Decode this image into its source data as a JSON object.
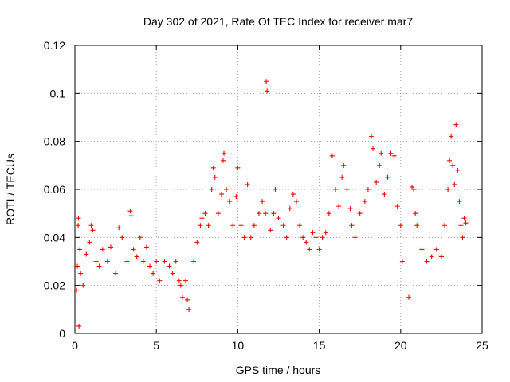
{
  "chart_data": {
    "type": "scatter",
    "title": "Day 302 of 2021, Rate Of TEC Index for receiver mar7",
    "xlabel": "GPS time / hours",
    "ylabel": "ROTI / TECUs",
    "xlim": [
      0,
      25
    ],
    "ylim": [
      0,
      0.12
    ],
    "x_ticks": [
      "0",
      "5",
      "10",
      "15",
      "20",
      "25"
    ],
    "y_ticks": [
      "0",
      "0.02",
      "0.04",
      "0.06",
      "0.08",
      "0.1",
      "0.12"
    ],
    "grid": true,
    "marker": "+",
    "color": "#ff0000",
    "series": [
      {
        "points": [
          [
            0.1,
            0.018
          ],
          [
            0.15,
            0.028
          ],
          [
            0.2,
            0.045
          ],
          [
            0.22,
            0.048
          ],
          [
            0.25,
            0.003
          ],
          [
            0.3,
            0.035
          ],
          [
            0.35,
            0.025
          ],
          [
            0.5,
            0.02
          ],
          [
            0.7,
            0.033
          ],
          [
            0.9,
            0.038
          ],
          [
            1.0,
            0.045
          ],
          [
            1.1,
            0.043
          ],
          [
            1.3,
            0.03
          ],
          [
            1.5,
            0.028
          ],
          [
            1.7,
            0.035
          ],
          [
            2.0,
            0.03
          ],
          [
            2.2,
            0.036
          ],
          [
            2.5,
            0.025
          ],
          [
            2.7,
            0.044
          ],
          [
            2.9,
            0.04
          ],
          [
            3.2,
            0.03
          ],
          [
            3.4,
            0.051
          ],
          [
            3.45,
            0.049
          ],
          [
            3.6,
            0.035
          ],
          [
            3.8,
            0.032
          ],
          [
            4.0,
            0.04
          ],
          [
            4.2,
            0.03
          ],
          [
            4.4,
            0.036
          ],
          [
            4.6,
            0.028
          ],
          [
            4.8,
            0.025
          ],
          [
            5.0,
            0.03
          ],
          [
            5.2,
            0.022
          ],
          [
            5.5,
            0.03
          ],
          [
            5.8,
            0.028
          ],
          [
            6.0,
            0.025
          ],
          [
            6.2,
            0.03
          ],
          [
            6.4,
            0.022
          ],
          [
            6.5,
            0.02
          ],
          [
            6.6,
            0.015
          ],
          [
            6.8,
            0.022
          ],
          [
            6.9,
            0.014
          ],
          [
            7.0,
            0.01
          ],
          [
            7.3,
            0.03
          ],
          [
            7.5,
            0.038
          ],
          [
            7.7,
            0.045
          ],
          [
            7.8,
            0.048
          ],
          [
            8.0,
            0.05
          ],
          [
            8.2,
            0.045
          ],
          [
            8.4,
            0.06
          ],
          [
            8.5,
            0.069
          ],
          [
            8.6,
            0.065
          ],
          [
            8.8,
            0.05
          ],
          [
            9.0,
            0.058
          ],
          [
            9.1,
            0.072
          ],
          [
            9.15,
            0.075
          ],
          [
            9.3,
            0.06
          ],
          [
            9.5,
            0.055
          ],
          [
            9.7,
            0.045
          ],
          [
            9.9,
            0.057
          ],
          [
            10.0,
            0.069
          ],
          [
            10.2,
            0.045
          ],
          [
            10.4,
            0.04
          ],
          [
            10.6,
            0.062
          ],
          [
            10.8,
            0.04
          ],
          [
            11.0,
            0.045
          ],
          [
            11.3,
            0.05
          ],
          [
            11.5,
            0.055
          ],
          [
            11.7,
            0.05
          ],
          [
            11.75,
            0.105
          ],
          [
            11.8,
            0.101
          ],
          [
            12.0,
            0.043
          ],
          [
            12.2,
            0.05
          ],
          [
            12.3,
            0.06
          ],
          [
            12.5,
            0.048
          ],
          [
            12.8,
            0.045
          ],
          [
            13.0,
            0.04
          ],
          [
            13.2,
            0.052
          ],
          [
            13.4,
            0.058
          ],
          [
            13.6,
            0.055
          ],
          [
            13.8,
            0.045
          ],
          [
            14.0,
            0.04
          ],
          [
            14.2,
            0.038
          ],
          [
            14.4,
            0.035
          ],
          [
            14.6,
            0.042
          ],
          [
            14.8,
            0.04
          ],
          [
            15.0,
            0.035
          ],
          [
            15.2,
            0.04
          ],
          [
            15.4,
            0.042
          ],
          [
            15.6,
            0.05
          ],
          [
            15.8,
            0.074
          ],
          [
            16.0,
            0.06
          ],
          [
            16.2,
            0.053
          ],
          [
            16.4,
            0.065
          ],
          [
            16.5,
            0.07
          ],
          [
            16.7,
            0.06
          ],
          [
            16.9,
            0.052
          ],
          [
            17.0,
            0.045
          ],
          [
            17.2,
            0.04
          ],
          [
            17.5,
            0.05
          ],
          [
            17.8,
            0.055
          ],
          [
            18.0,
            0.06
          ],
          [
            18.2,
            0.082
          ],
          [
            18.3,
            0.077
          ],
          [
            18.5,
            0.063
          ],
          [
            18.7,
            0.07
          ],
          [
            18.8,
            0.075
          ],
          [
            19.0,
            0.058
          ],
          [
            19.2,
            0.065
          ],
          [
            19.4,
            0.075
          ],
          [
            19.6,
            0.074
          ],
          [
            19.8,
            0.053
          ],
          [
            20.0,
            0.045
          ],
          [
            20.1,
            0.03
          ],
          [
            20.5,
            0.015
          ],
          [
            20.7,
            0.061
          ],
          [
            20.8,
            0.06
          ],
          [
            20.9,
            0.05
          ],
          [
            21.0,
            0.045
          ],
          [
            21.3,
            0.035
          ],
          [
            21.6,
            0.03
          ],
          [
            21.9,
            0.032
          ],
          [
            22.2,
            0.035
          ],
          [
            22.5,
            0.032
          ],
          [
            22.7,
            0.045
          ],
          [
            22.9,
            0.06
          ],
          [
            23.0,
            0.072
          ],
          [
            23.1,
            0.082
          ],
          [
            23.2,
            0.07
          ],
          [
            23.3,
            0.062
          ],
          [
            23.4,
            0.087
          ],
          [
            23.5,
            0.068
          ],
          [
            23.6,
            0.055
          ],
          [
            23.7,
            0.045
          ],
          [
            23.8,
            0.04
          ],
          [
            23.9,
            0.048
          ],
          [
            24.0,
            0.046
          ]
        ]
      }
    ]
  }
}
